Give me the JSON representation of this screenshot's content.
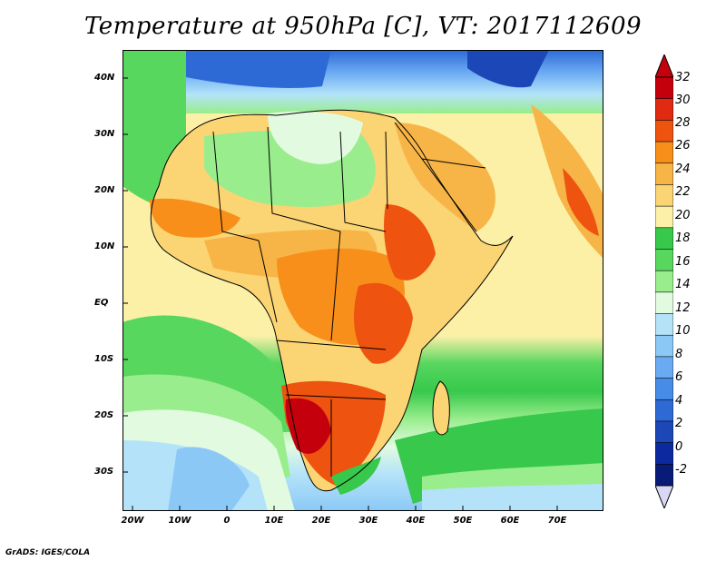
{
  "title": "Temperature at 950hPa [C], VT: 2017112609",
  "footer": "GrADS: IGES/COLA",
  "lat_labels": [
    "40N",
    "30N",
    "20N",
    "10N",
    "EQ",
    "10S",
    "20S",
    "30S"
  ],
  "lon_labels": [
    "20W",
    "10W",
    "0",
    "10E",
    "20E",
    "30E",
    "40E",
    "50E",
    "60E",
    "70E"
  ],
  "colorbar": {
    "labels": [
      "32",
      "30",
      "28",
      "26",
      "24",
      "22",
      "20",
      "18",
      "16",
      "14",
      "12",
      "10",
      "8",
      "6",
      "4",
      "2",
      "0",
      "-2"
    ],
    "colors": [
      "#c4000c",
      "#e02a12",
      "#ee5310",
      "#f88f1b",
      "#f7b548",
      "#fbd474",
      "#fcf0a7",
      "#37c84c",
      "#58d75f",
      "#99ed8c",
      "#e2fbe0",
      "#b4e3f9",
      "#8cc8f6",
      "#6aaaf3",
      "#478ce7",
      "#2e6ad6",
      "#1c48b7",
      "#0c2aa0",
      "#081b76"
    ],
    "top_arrow_color": "#c4000c",
    "bottom_arrow_color": "#d8d8f6"
  },
  "map": {
    "lon_range": [
      -22,
      81
    ],
    "lat_range": [
      -37,
      45
    ],
    "ocean_color": "#fcf0a7",
    "border_color": "#000000"
  }
}
